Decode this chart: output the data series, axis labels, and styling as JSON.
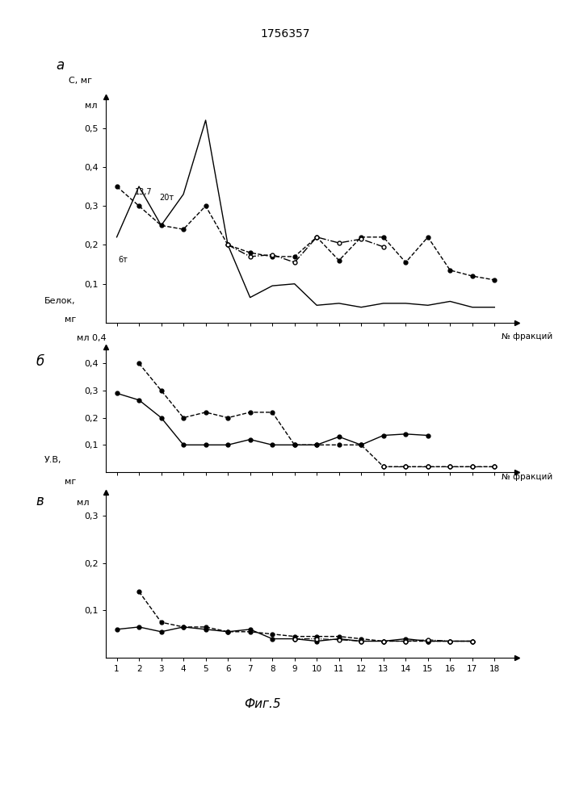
{
  "title": "1756357",
  "x": [
    1,
    2,
    3,
    4,
    5,
    6,
    7,
    8,
    9,
    10,
    11,
    12,
    13,
    14,
    15,
    16,
    17,
    18
  ],
  "panel_a_yticks": [
    0.1,
    0.2,
    0.3,
    0.4,
    0.5
  ],
  "panel_a_ylim": [
    0.0,
    0.58
  ],
  "panel_a_solid": [
    0.22,
    0.35,
    0.25,
    0.33,
    0.52,
    0.2,
    0.065,
    0.095,
    0.1,
    0.045,
    0.05,
    0.04,
    0.05,
    0.05,
    0.045,
    0.055,
    0.04,
    0.04
  ],
  "panel_a_dashed_dot": [
    0.35,
    0.3,
    0.25,
    0.24,
    0.3,
    0.2,
    0.18,
    0.17,
    0.17,
    0.22,
    0.16,
    0.22,
    0.22,
    0.155,
    0.22,
    0.135,
    0.12,
    0.11
  ],
  "panel_a_dashdot2": [
    null,
    null,
    null,
    null,
    null,
    0.2,
    0.17,
    0.175,
    0.155,
    0.22,
    0.205,
    0.215,
    0.195,
    null,
    null,
    null,
    null,
    null
  ],
  "panel_b_yticks": [
    0.1,
    0.2,
    0.3,
    0.4
  ],
  "panel_b_ylim": [
    0.0,
    0.46
  ],
  "panel_b_solid": [
    0.29,
    0.265,
    0.2,
    0.1,
    0.1,
    0.1,
    0.12,
    0.1,
    0.1,
    0.1,
    0.13,
    0.1,
    0.135,
    0.14,
    0.135,
    null,
    null,
    null
  ],
  "panel_b_dashed": [
    null,
    0.4,
    0.3,
    0.2,
    0.22,
    0.2,
    0.22,
    0.22,
    0.1,
    0.1,
    0.1,
    0.1,
    0.02,
    0.02,
    0.02,
    0.02,
    0.02,
    0.02
  ],
  "panel_c_yticks": [
    0.1,
    0.2,
    0.3
  ],
  "panel_c_ylim": [
    0.0,
    0.35
  ],
  "panel_c_solid": [
    0.06,
    0.065,
    0.055,
    0.065,
    0.06,
    0.055,
    0.06,
    0.04,
    0.04,
    0.035,
    0.04,
    0.035,
    0.035,
    0.04,
    0.035,
    0.035,
    0.035,
    null
  ],
  "panel_c_dashed": [
    null,
    0.14,
    0.075,
    0.065,
    0.065,
    0.055,
    0.055,
    0.05,
    0.045,
    0.045,
    0.045,
    0.04,
    0.035,
    0.035,
    0.035,
    0.035,
    0.035,
    null
  ]
}
